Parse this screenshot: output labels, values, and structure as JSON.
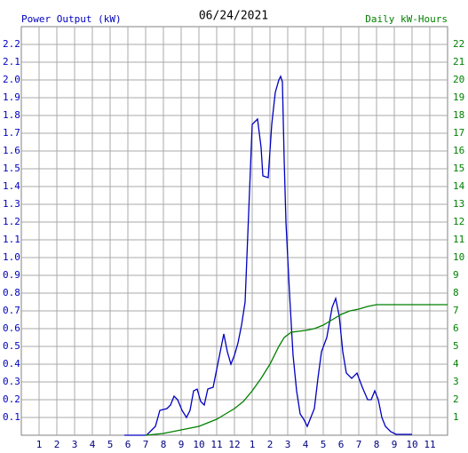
{
  "chart_data": {
    "type": "line",
    "title": "06/24/2021",
    "y_label": "Power Output (kW)",
    "y2_label": "Daily kW-Hours",
    "grid": true,
    "xlim": [
      0,
      24
    ],
    "xticks": [
      1,
      2,
      3,
      4,
      5,
      6,
      7,
      8,
      9,
      10,
      11,
      12,
      {
        "value": 13,
        "label": "1"
      },
      {
        "value": 14,
        "label": "2"
      },
      {
        "value": 15,
        "label": "3"
      },
      {
        "value": 16,
        "label": "4"
      },
      {
        "value": 17,
        "label": "5"
      },
      {
        "value": 18,
        "label": "6"
      },
      {
        "value": 19,
        "label": "7"
      },
      {
        "value": 20,
        "label": "8"
      },
      {
        "value": 21,
        "label": "9"
      },
      {
        "value": 22,
        "label": "10"
      },
      {
        "value": 23,
        "label": "11"
      }
    ],
    "ylim": [
      0,
      2.3
    ],
    "yticks": [
      0.1,
      0.2,
      0.3,
      0.4,
      0.5,
      0.6,
      0.7,
      0.8,
      0.9,
      {
        "value": 1,
        "label": "1.0"
      },
      1.1,
      1.2,
      1.3,
      1.4,
      1.5,
      1.6,
      1.7,
      1.8,
      1.9,
      {
        "value": 2,
        "label": "2.0"
      },
      2.1,
      2.2
    ],
    "y2lim": [
      0,
      23
    ],
    "y2ticks": [
      1,
      2,
      3,
      4,
      5,
      6,
      7,
      8,
      9,
      10,
      11,
      12,
      13,
      14,
      15,
      16,
      17,
      18,
      19,
      20,
      21,
      22
    ],
    "series": [
      {
        "name": "Power Output (kW)",
        "color": "#0000c0",
        "x": [
          5.8,
          7.05,
          7.55,
          7.8,
          8.2,
          8.4,
          8.6,
          8.8,
          9.05,
          9.3,
          9.5,
          9.7,
          9.9,
          10.1,
          10.3,
          10.5,
          10.8,
          11.0,
          11.2,
          11.4,
          11.6,
          11.8,
          12.0,
          12.2,
          12.4,
          12.6,
          12.8,
          13.0,
          13.3,
          13.5,
          13.6,
          13.9,
          14.1,
          14.3,
          14.5,
          14.6,
          14.7,
          14.8,
          14.9,
          15.1,
          15.3,
          15.5,
          15.7,
          15.9,
          16.1,
          16.3,
          16.5,
          16.7,
          16.9,
          17.2,
          17.5,
          17.7,
          17.9,
          18.1,
          18.3,
          18.6,
          18.9,
          19.2,
          19.5,
          19.7,
          19.9,
          20.1,
          20.3,
          20.5,
          20.8,
          21.1,
          22.0
        ],
        "values": [
          0,
          0,
          0.05,
          0.14,
          0.15,
          0.17,
          0.22,
          0.2,
          0.14,
          0.1,
          0.14,
          0.25,
          0.26,
          0.19,
          0.17,
          0.26,
          0.27,
          0.37,
          0.47,
          0.57,
          0.47,
          0.4,
          0.45,
          0.52,
          0.62,
          0.75,
          1.25,
          1.75,
          1.78,
          1.62,
          1.46,
          1.45,
          1.75,
          1.93,
          2.0,
          2.02,
          1.99,
          1.55,
          1.2,
          0.8,
          0.45,
          0.25,
          0.12,
          0.09,
          0.05,
          0.1,
          0.15,
          0.32,
          0.47,
          0.55,
          0.72,
          0.77,
          0.67,
          0.47,
          0.35,
          0.32,
          0.35,
          0.27,
          0.2,
          0.2,
          0.25,
          0.2,
          0.1,
          0.05,
          0.02,
          0.005,
          0.005
        ]
      },
      {
        "name": "Daily kW-Hours",
        "color": "#008000",
        "axis": "y2",
        "x": [
          7.0,
          7.5,
          8,
          8.5,
          9,
          9.5,
          10,
          10.5,
          11,
          11.5,
          12,
          12.5,
          13,
          13.5,
          14,
          14.5,
          14.8,
          15.2,
          16,
          16.5,
          17,
          17.5,
          18,
          18.5,
          19,
          19.5,
          20,
          21,
          22,
          24
        ],
        "values": [
          0,
          0.05,
          0.1,
          0.2,
          0.3,
          0.4,
          0.5,
          0.7,
          0.9,
          1.2,
          1.5,
          1.9,
          2.5,
          3.2,
          4.0,
          5.0,
          5.5,
          5.8,
          5.9,
          6.0,
          6.2,
          6.5,
          6.8,
          7.0,
          7.1,
          7.25,
          7.35,
          7.35,
          7.35,
          7.35
        ]
      }
    ]
  }
}
